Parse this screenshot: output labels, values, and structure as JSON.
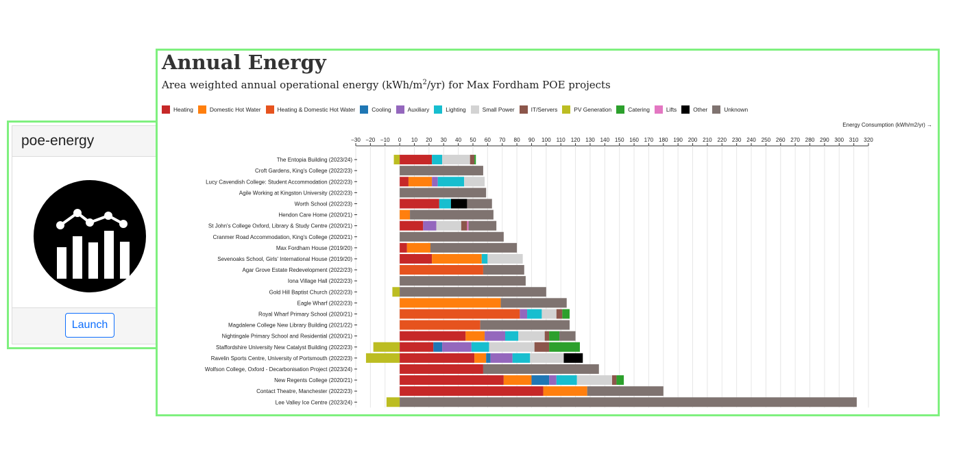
{
  "card": {
    "title": "poe-energy",
    "launch_label": "Launch",
    "icon": "chart-icon"
  },
  "chart_data": {
    "type": "bar",
    "stacked": true,
    "orientation": "horizontal",
    "title": "Annual Energy",
    "subtitle_pre": "Area weighted annual operational energy (kWh/m",
    "subtitle_sup": "2",
    "subtitle_post": "/yr) for Max Fordham POE projects",
    "xlabel": "Energy Consumption (kWh/m2/yr) →",
    "xlim": [
      -30,
      320
    ],
    "xticks": [
      -30,
      -20,
      -10,
      0,
      10,
      20,
      30,
      40,
      50,
      60,
      70,
      80,
      90,
      100,
      110,
      120,
      130,
      140,
      150,
      160,
      170,
      180,
      190,
      200,
      210,
      220,
      230,
      240,
      250,
      260,
      270,
      280,
      290,
      300,
      310,
      320
    ],
    "legend": [
      {
        "name": "Heating",
        "color": "#c62828"
      },
      {
        "name": "Domestic Hot Water",
        "color": "#ff7f0e"
      },
      {
        "name": "Heating & Domestic Hot Water",
        "color": "#e6531e"
      },
      {
        "name": "Cooling",
        "color": "#1f77b4"
      },
      {
        "name": "Auxiliary",
        "color": "#9467bd"
      },
      {
        "name": "Lighting",
        "color": "#17becf"
      },
      {
        "name": "Small Power",
        "color": "#d3d3d3"
      },
      {
        "name": "IT/Servers",
        "color": "#8c564b"
      },
      {
        "name": "PV Generation",
        "color": "#bcbd22"
      },
      {
        "name": "Catering",
        "color": "#2ca02c"
      },
      {
        "name": "Lifts",
        "color": "#e377c2"
      },
      {
        "name": "Other",
        "color": "#000000"
      },
      {
        "name": "Unknown",
        "color": "#7f7370"
      }
    ],
    "projects": [
      {
        "name": "The Entopia Building (2023/24)",
        "pv": -4,
        "segments": [
          [
            "Heating",
            22
          ],
          [
            "Lighting",
            7
          ],
          [
            "Small Power",
            19
          ],
          [
            "IT/Servers",
            3
          ],
          [
            "Catering",
            1
          ]
        ]
      },
      {
        "name": "Croft Gardens, King's College (2022/23)",
        "pv": 0,
        "segments": [
          [
            "Unknown",
            57
          ]
        ]
      },
      {
        "name": "Lucy Cavendish College: Student Accommodation (2022/23)",
        "pv": 0,
        "segments": [
          [
            "Heating",
            6
          ],
          [
            "Domestic Hot Water",
            16
          ],
          [
            "Auxiliary",
            4
          ],
          [
            "Lighting",
            18
          ],
          [
            "Small Power",
            14
          ]
        ]
      },
      {
        "name": "Agile Working at Kingston University (2022/23)",
        "pv": 0,
        "segments": [
          [
            "Unknown",
            59
          ]
        ]
      },
      {
        "name": "Worth School (2022/23)",
        "pv": 0,
        "segments": [
          [
            "Heating",
            27
          ],
          [
            "Lighting",
            8
          ],
          [
            "Other",
            11
          ],
          [
            "Unknown",
            17
          ]
        ]
      },
      {
        "name": "Hendon Care Home (2020/21)",
        "pv": 0,
        "segments": [
          [
            "Domestic Hot Water",
            7
          ],
          [
            "Unknown",
            57
          ]
        ]
      },
      {
        "name": "St John's College Oxford, Library & Study Centre (2020/21)",
        "pv": 0,
        "segments": [
          [
            "Heating",
            16
          ],
          [
            "Auxiliary",
            9
          ],
          [
            "Small Power",
            17
          ],
          [
            "IT/Servers",
            4
          ],
          [
            "Lifts",
            1
          ],
          [
            "Unknown",
            19
          ]
        ]
      },
      {
        "name": "Cranmer Road Accommodation, King's College (2020/21)",
        "pv": 0,
        "segments": [
          [
            "Unknown",
            71
          ]
        ]
      },
      {
        "name": "Max Fordham House (2019/20)",
        "pv": 0,
        "segments": [
          [
            "Heating",
            5
          ],
          [
            "Domestic Hot Water",
            16
          ],
          [
            "Unknown",
            59
          ]
        ]
      },
      {
        "name": "Sevenoaks School, Girls' International House (2019/20)",
        "pv": 0,
        "segments": [
          [
            "Heating",
            22
          ],
          [
            "Domestic Hot Water",
            34
          ],
          [
            "Lighting",
            4
          ],
          [
            "Small Power",
            24
          ]
        ]
      },
      {
        "name": "Agar Grove Estate Redevelopment (2022/23)",
        "pv": 0,
        "segments": [
          [
            "Heating & Domestic Hot Water",
            57
          ],
          [
            "Unknown",
            28
          ]
        ]
      },
      {
        "name": "Iona Village Hall (2022/23)",
        "pv": 0,
        "segments": [
          [
            "Unknown",
            86
          ]
        ]
      },
      {
        "name": "Gold Hill Baptist Church (2022/23)",
        "pv": -5,
        "segments": [
          [
            "Unknown",
            100
          ]
        ]
      },
      {
        "name": "Eagle Wharf (2022/23)",
        "pv": 0,
        "segments": [
          [
            "Domestic Hot Water",
            69
          ],
          [
            "Unknown",
            45
          ]
        ]
      },
      {
        "name": "Royal Wharf Primary School (2020/21)",
        "pv": 0,
        "segments": [
          [
            "Heating & Domestic Hot Water",
            82
          ],
          [
            "Auxiliary",
            5
          ],
          [
            "Lighting",
            10
          ],
          [
            "Small Power",
            10
          ],
          [
            "IT/Servers",
            4
          ],
          [
            "Catering",
            5
          ]
        ]
      },
      {
        "name": "Magdalene College New Library Building (2021/22)",
        "pv": 0,
        "segments": [
          [
            "Heating & Domestic Hot Water",
            55
          ],
          [
            "Unknown",
            61
          ]
        ]
      },
      {
        "name": "Nightingale Primary School and Residential (2020/21)",
        "pv": 0,
        "segments": [
          [
            "Heating",
            45
          ],
          [
            "Domestic Hot Water",
            13
          ],
          [
            "Auxiliary",
            14
          ],
          [
            "Lighting",
            9
          ],
          [
            "Small Power",
            18
          ],
          [
            "IT/Servers",
            3
          ],
          [
            "Catering",
            7
          ],
          [
            "Unknown",
            11
          ]
        ]
      },
      {
        "name": "Staffordshire University New Catalyst Building (2022/23)",
        "pv": -18,
        "segments": [
          [
            "Heating",
            23
          ],
          [
            "Cooling",
            6
          ],
          [
            "Auxiliary",
            20
          ],
          [
            "Lighting",
            12
          ],
          [
            "Small Power",
            31
          ],
          [
            "IT/Servers",
            10
          ],
          [
            "Catering",
            21
          ]
        ]
      },
      {
        "name": "Ravelin Sports Centre, University of Portsmouth (2022/23)",
        "pv": -23,
        "segments": [
          [
            "Heating",
            51
          ],
          [
            "Domestic Hot Water",
            8
          ],
          [
            "Cooling",
            3
          ],
          [
            "Auxiliary",
            15
          ],
          [
            "Lighting",
            12
          ],
          [
            "Small Power",
            23
          ],
          [
            "Other",
            13
          ]
        ]
      },
      {
        "name": "Wolfson College, Oxford - Decarbonisation Project (2023/24)",
        "pv": 0,
        "segments": [
          [
            "Heating",
            57
          ],
          [
            "Unknown",
            79
          ]
        ]
      },
      {
        "name": "New Regents College (2020/21)",
        "pv": 0,
        "segments": [
          [
            "Heating",
            71
          ],
          [
            "Domestic Hot Water",
            19
          ],
          [
            "Cooling",
            12
          ],
          [
            "Auxiliary",
            5
          ],
          [
            "Lighting",
            14
          ],
          [
            "Small Power",
            24
          ],
          [
            "IT/Servers",
            3
          ],
          [
            "Catering",
            5
          ]
        ]
      },
      {
        "name": "Contact Theatre, Manchester (2022/23)",
        "pv": 0,
        "segments": [
          [
            "Heating",
            98
          ],
          [
            "Domestic Hot Water",
            30
          ],
          [
            "Unknown",
            52
          ]
        ]
      },
      {
        "name": "Lee Valley Ice Centre (2023/24)",
        "pv": -9,
        "segments": [
          [
            "Unknown",
            312
          ]
        ]
      }
    ]
  }
}
